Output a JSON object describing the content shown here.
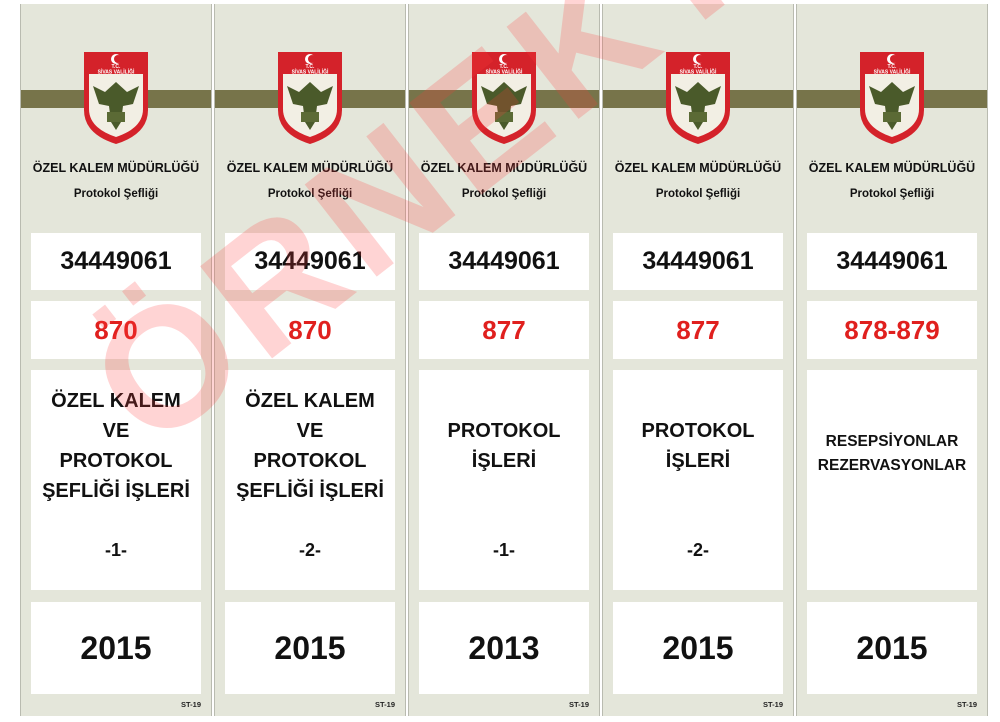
{
  "colors": {
    "band": "#77744a",
    "number": "#e0201e",
    "watermark": "#ff3c3c",
    "background": "#e4e6da"
  },
  "emblem_label": [
    "T.C.",
    "SİVAS VALİLİĞİ"
  ],
  "labels": [
    {
      "department": "ÖZEL KALEM MÜDÜRLÜĞÜ",
      "unit": "Protokol Şefliği",
      "code": "34449061",
      "file_number": "870",
      "title_lines": [
        "ÖZEL KALEM",
        "VE",
        "PROTOKOL",
        "ŞEFLİĞİ İŞLERİ"
      ],
      "volume": "-1-",
      "year": "2015",
      "stock_code": "ST-19"
    },
    {
      "department": "ÖZEL KALEM MÜDÜRLÜĞÜ",
      "unit": "Protokol Şefliği",
      "code": "34449061",
      "file_number": "870",
      "title_lines": [
        "ÖZEL KALEM",
        "VE",
        "PROTOKOL",
        "ŞEFLİĞİ İŞLERİ"
      ],
      "volume": "-2-",
      "year": "2015",
      "stock_code": "ST-19"
    },
    {
      "department": "ÖZEL KALEM MÜDÜRLÜĞÜ",
      "unit": "Protokol Şefliği",
      "code": "34449061",
      "file_number": "877",
      "title_lines": [
        "PROTOKOL",
        "İŞLERİ"
      ],
      "volume": "-1-",
      "year": "2013",
      "stock_code": "ST-19"
    },
    {
      "department": "ÖZEL KALEM MÜDÜRLÜĞÜ",
      "unit": "Protokol Şefliği",
      "code": "34449061",
      "file_number": "877",
      "title_lines": [
        "PROTOKOL",
        "İŞLERİ"
      ],
      "volume": "-2-",
      "year": "2015",
      "stock_code": "ST-19"
    },
    {
      "department": "ÖZEL KALEM MÜDÜRLÜĞÜ",
      "unit": "Protokol Şefliği",
      "code": "34449061",
      "file_number": "878-879",
      "title_lines": [
        "RESEPSİYONLAR",
        "REZERVASYONLAR"
      ],
      "volume": "",
      "year": "2015",
      "stock_code": "ST-19"
    }
  ],
  "watermark": "ÖRNEKTİR"
}
